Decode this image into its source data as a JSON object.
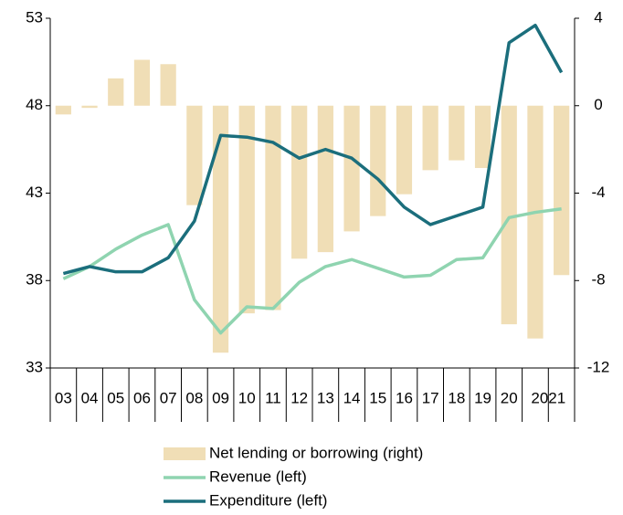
{
  "chart_data": {
    "type": "bar-line",
    "categories": [
      "03",
      "04",
      "05",
      "06",
      "07",
      "08",
      "09",
      "10",
      "11",
      "12",
      "13",
      "14",
      "15",
      "16",
      "17",
      "18",
      "19",
      "20",
      "2021",
      null
    ],
    "series": [
      {
        "name": "Net lending or borrowing (right)",
        "type": "bar",
        "axis": "y2",
        "color": "#f0deb6",
        "values": [
          -0.4,
          -0.1,
          1.25,
          2.1,
          1.9,
          -4.55,
          -11.3,
          -9.5,
          -9.35,
          -7.0,
          -6.7,
          -5.75,
          -5.05,
          -4.05,
          -2.95,
          -2.5,
          -2.85,
          -10.0,
          -10.65,
          -7.75
        ]
      },
      {
        "name": "Revenue (left)",
        "type": "line",
        "color": "#8fd4b0",
        "values": [
          38.1,
          38.8,
          39.8,
          40.6,
          41.2,
          36.9,
          35.0,
          36.5,
          36.4,
          37.9,
          38.8,
          39.2,
          38.7,
          38.2,
          38.3,
          39.2,
          39.3,
          41.6,
          41.9,
          42.1
        ]
      },
      {
        "name": "Expenditure (left)",
        "type": "line",
        "color": "#1b6e7c",
        "values": [
          38.4,
          38.8,
          38.5,
          38.5,
          39.3,
          41.4,
          46.3,
          46.2,
          45.9,
          45.0,
          45.5,
          45.0,
          43.8,
          42.2,
          41.2,
          41.7,
          42.2,
          51.6,
          52.6,
          49.9
        ]
      }
    ],
    "ylim": [
      33,
      53
    ],
    "yticks": [
      33,
      38,
      43,
      48,
      53
    ],
    "y2lim": [
      -12,
      4
    ],
    "y2ticks": [
      -12,
      -8,
      -4,
      0,
      4
    ]
  }
}
